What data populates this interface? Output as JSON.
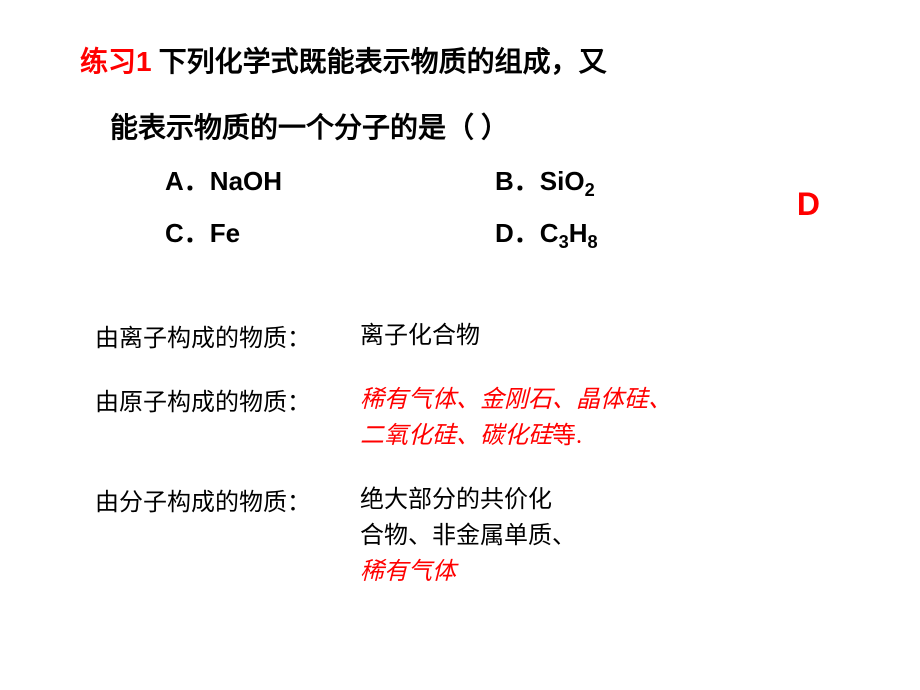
{
  "question": {
    "exercise_label": "练习",
    "exercise_num": "1",
    "line1": " 下列化学式既能表示物质的组成，又",
    "line2": "能表示物质的一个分子的是（  ）"
  },
  "options": {
    "a_label": "A",
    "a_text": "NaOH",
    "b_label": "B",
    "b_text_pre": "SiO",
    "b_sub": "2",
    "c_label": "C",
    "c_text": "Fe",
    "d_label": "D",
    "d_text_pre": "C",
    "d_sub1": "3",
    "d_text_mid": "H",
    "d_sub2": "8"
  },
  "answer": "D",
  "definitions": {
    "ion_label": "由离子构成的物质：",
    "ion_content": "离子化合物",
    "atom_label": "由原子构成的物质：",
    "atom_content_line1": "稀有气体、金刚石、晶体硅、",
    "atom_content_line2": "二氧化硅、碳化硅",
    "atom_content_suffix": "等.",
    "molecule_label": "由分子构成的物质：",
    "molecule_line1": "绝大部分的共价化",
    "molecule_line2": "合物、非金属单质、",
    "molecule_line3": "稀有气体"
  },
  "colors": {
    "red": "#ff0000",
    "black": "#000000",
    "background": "#ffffff"
  }
}
